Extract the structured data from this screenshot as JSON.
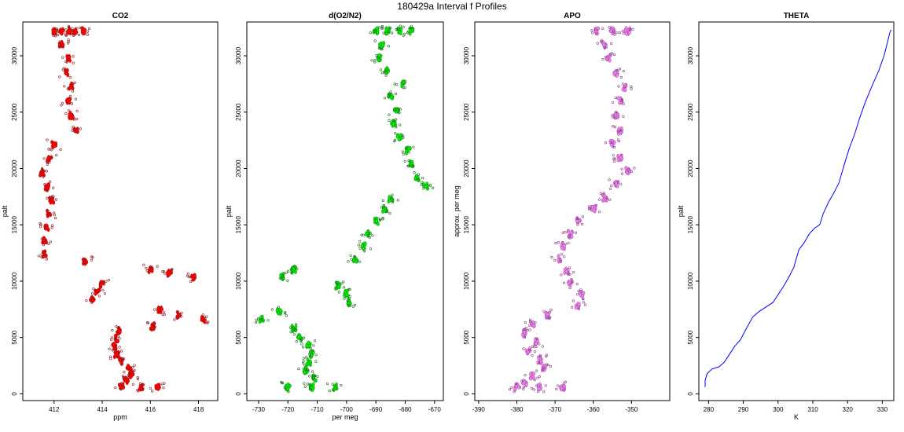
{
  "figure": {
    "title": "180429a   Interval f Profiles"
  },
  "chart_data": [
    {
      "type": "scatter",
      "title": "CO2",
      "xlabel": "ppm",
      "ylabel": "palt",
      "xlim": [
        410.7,
        418.8
      ],
      "ylim": [
        -600,
        33000
      ],
      "xticks": [
        412,
        414,
        416,
        418
      ],
      "yticks": [
        0,
        5000,
        10000,
        15000,
        20000,
        25000,
        30000
      ],
      "color": "#ff0000",
      "outline": "#8b1a1a",
      "series": [
        {
          "name": "profile",
          "points": [
            [
              412.0,
              32200
            ],
            [
              412.3,
              32200
            ],
            [
              412.6,
              32200
            ],
            [
              412.9,
              32200
            ],
            [
              413.2,
              32200
            ],
            [
              412.3,
              31000
            ],
            [
              412.6,
              29800
            ],
            [
              412.5,
              28500
            ],
            [
              412.7,
              27300
            ],
            [
              412.6,
              26000
            ],
            [
              412.7,
              24700
            ],
            [
              412.9,
              23400
            ],
            [
              412.0,
              22100
            ],
            [
              411.8,
              20800
            ],
            [
              411.5,
              19600
            ],
            [
              411.7,
              18400
            ],
            [
              411.9,
              17200
            ],
            [
              411.8,
              16000
            ],
            [
              411.7,
              14800
            ],
            [
              411.6,
              13600
            ],
            [
              411.6,
              12400
            ],
            [
              413.3,
              11800
            ],
            [
              416.0,
              11000
            ],
            [
              416.8,
              10700
            ],
            [
              417.8,
              10300
            ],
            [
              414.0,
              9700
            ],
            [
              413.8,
              9000
            ],
            [
              413.6,
              8400
            ],
            [
              416.4,
              7400
            ],
            [
              417.2,
              7000
            ],
            [
              418.2,
              6600
            ],
            [
              416.1,
              6000
            ],
            [
              414.7,
              5600
            ],
            [
              414.6,
              4900
            ],
            [
              414.5,
              4200
            ],
            [
              414.6,
              3500
            ],
            [
              414.8,
              2900
            ],
            [
              415.1,
              2300
            ],
            [
              415.2,
              1700
            ],
            [
              415.0,
              1200
            ],
            [
              414.8,
              600
            ],
            [
              415.6,
              600
            ],
            [
              416.3,
              600
            ]
          ]
        }
      ]
    },
    {
      "type": "scatter",
      "title": "d(O2/N2)",
      "xlabel": "per meg",
      "ylabel": "palt",
      "xlim": [
        -734,
        -667
      ],
      "ylim": [
        -600,
        33000
      ],
      "xticks": [
        -730,
        -720,
        -710,
        -700,
        -690,
        -680,
        -670
      ],
      "yticks": [
        0,
        5000,
        10000,
        15000,
        20000,
        25000,
        30000
      ],
      "color": "#00ee00",
      "outline": "#1a6b1a",
      "series": [
        {
          "name": "profile",
          "points": [
            [
              -690,
              32200
            ],
            [
              -686,
              32200
            ],
            [
              -682,
              32200
            ],
            [
              -678,
              32200
            ],
            [
              -688,
              31000
            ],
            [
              -689,
              29800
            ],
            [
              -686,
              28700
            ],
            [
              -681,
              27500
            ],
            [
              -685,
              26400
            ],
            [
              -683,
              25200
            ],
            [
              -684,
              24000
            ],
            [
              -682,
              22800
            ],
            [
              -679,
              21600
            ],
            [
              -678,
              20400
            ],
            [
              -676,
              19200
            ],
            [
              -673,
              18400
            ],
            [
              -685,
              17300
            ],
            [
              -687,
              16400
            ],
            [
              -690,
              15300
            ],
            [
              -693,
              14200
            ],
            [
              -694,
              13100
            ],
            [
              -697,
              12000
            ],
            [
              -718,
              11000
            ],
            [
              -722,
              10400
            ],
            [
              -703,
              9600
            ],
            [
              -700,
              8900
            ],
            [
              -699,
              8100
            ],
            [
              -723,
              7300
            ],
            [
              -729,
              6600
            ],
            [
              -718,
              5800
            ],
            [
              -716,
              5000
            ],
            [
              -713,
              4300
            ],
            [
              -712,
              3500
            ],
            [
              -713,
              2800
            ],
            [
              -714,
              2100
            ],
            [
              -711,
              1400
            ],
            [
              -712,
              600
            ],
            [
              -720,
              600
            ],
            [
              -704,
              600
            ]
          ]
        }
      ]
    },
    {
      "type": "scatter",
      "title": "APO",
      "xlabel": "",
      "ylabel": "approx. per meg",
      "xlim": [
        -391,
        -340
      ],
      "ylim": [
        -600,
        33000
      ],
      "xticks": [
        -390,
        -380,
        -370,
        -360,
        -350
      ],
      "yticks": [
        0,
        5000,
        10000,
        15000,
        20000,
        25000,
        30000
      ],
      "color": "#ee82ee",
      "outline": "#8b3a8b",
      "series": [
        {
          "name": "profile",
          "points": [
            [
              -359,
              32200
            ],
            [
              -355,
              32200
            ],
            [
              -351,
              32200
            ],
            [
              -357,
              31000
            ],
            [
              -356,
              29800
            ],
            [
              -354,
              28500
            ],
            [
              -352,
              27200
            ],
            [
              -353,
              26000
            ],
            [
              -354,
              24700
            ],
            [
              -353,
              23400
            ],
            [
              -355,
              22200
            ],
            [
              -353,
              21000
            ],
            [
              -351,
              19800
            ],
            [
              -354,
              18600
            ],
            [
              -357,
              17400
            ],
            [
              -360,
              16400
            ],
            [
              -364,
              15300
            ],
            [
              -366,
              14200
            ],
            [
              -368,
              13100
            ],
            [
              -369,
              12000
            ],
            [
              -367,
              10900
            ],
            [
              -366,
              9800
            ],
            [
              -363,
              8800
            ],
            [
              -364,
              7800
            ],
            [
              -372,
              7000
            ],
            [
              -376,
              6200
            ],
            [
              -378,
              5400
            ],
            [
              -375,
              4600
            ],
            [
              -377,
              3800
            ],
            [
              -374,
              3000
            ],
            [
              -373,
              2300
            ],
            [
              -376,
              1600
            ],
            [
              -378,
              900
            ],
            [
              -374,
              600
            ],
            [
              -368,
              600
            ],
            [
              -380,
              600
            ]
          ]
        }
      ]
    },
    {
      "type": "line",
      "title": "THETA",
      "xlabel": "K",
      "ylabel": "palt",
      "xlim": [
        277.2,
        333.3
      ],
      "ylim": [
        -600,
        33000
      ],
      "xticks": [
        280,
        290,
        300,
        310,
        320,
        330
      ],
      "yticks": [
        0,
        5000,
        10000,
        15000,
        20000,
        25000,
        30000
      ],
      "color": "#0000ff",
      "series": [
        {
          "name": "theta",
          "points": [
            [
              279.0,
              600
            ],
            [
              279.0,
              1200
            ],
            [
              279.6,
              1800
            ],
            [
              281.0,
              2200
            ],
            [
              283.0,
              2400
            ],
            [
              284.5,
              2800
            ],
            [
              286.0,
              3500
            ],
            [
              287.5,
              4200
            ],
            [
              289.2,
              4800
            ],
            [
              290.7,
              5700
            ],
            [
              292.7,
              6800
            ],
            [
              294.5,
              7300
            ],
            [
              296.5,
              7700
            ],
            [
              298.5,
              8100
            ],
            [
              300.0,
              8800
            ],
            [
              301.5,
              9500
            ],
            [
              303.0,
              10300
            ],
            [
              304.5,
              11200
            ],
            [
              306.0,
              12800
            ],
            [
              307.5,
              13400
            ],
            [
              309.0,
              14200
            ],
            [
              310.5,
              14700
            ],
            [
              312.0,
              15000
            ],
            [
              313.0,
              16000
            ],
            [
              314.5,
              17000
            ],
            [
              316.0,
              17800
            ],
            [
              317.5,
              18700
            ],
            [
              319.0,
              20300
            ],
            [
              320.5,
              21800
            ],
            [
              322.0,
              23000
            ],
            [
              323.5,
              24500
            ],
            [
              325.0,
              25800
            ],
            [
              327.0,
              27300
            ],
            [
              329.0,
              28700
            ],
            [
              330.5,
              30000
            ],
            [
              331.5,
              31200
            ],
            [
              332.2,
              32100
            ],
            [
              332.6,
              32300
            ]
          ]
        }
      ]
    }
  ]
}
